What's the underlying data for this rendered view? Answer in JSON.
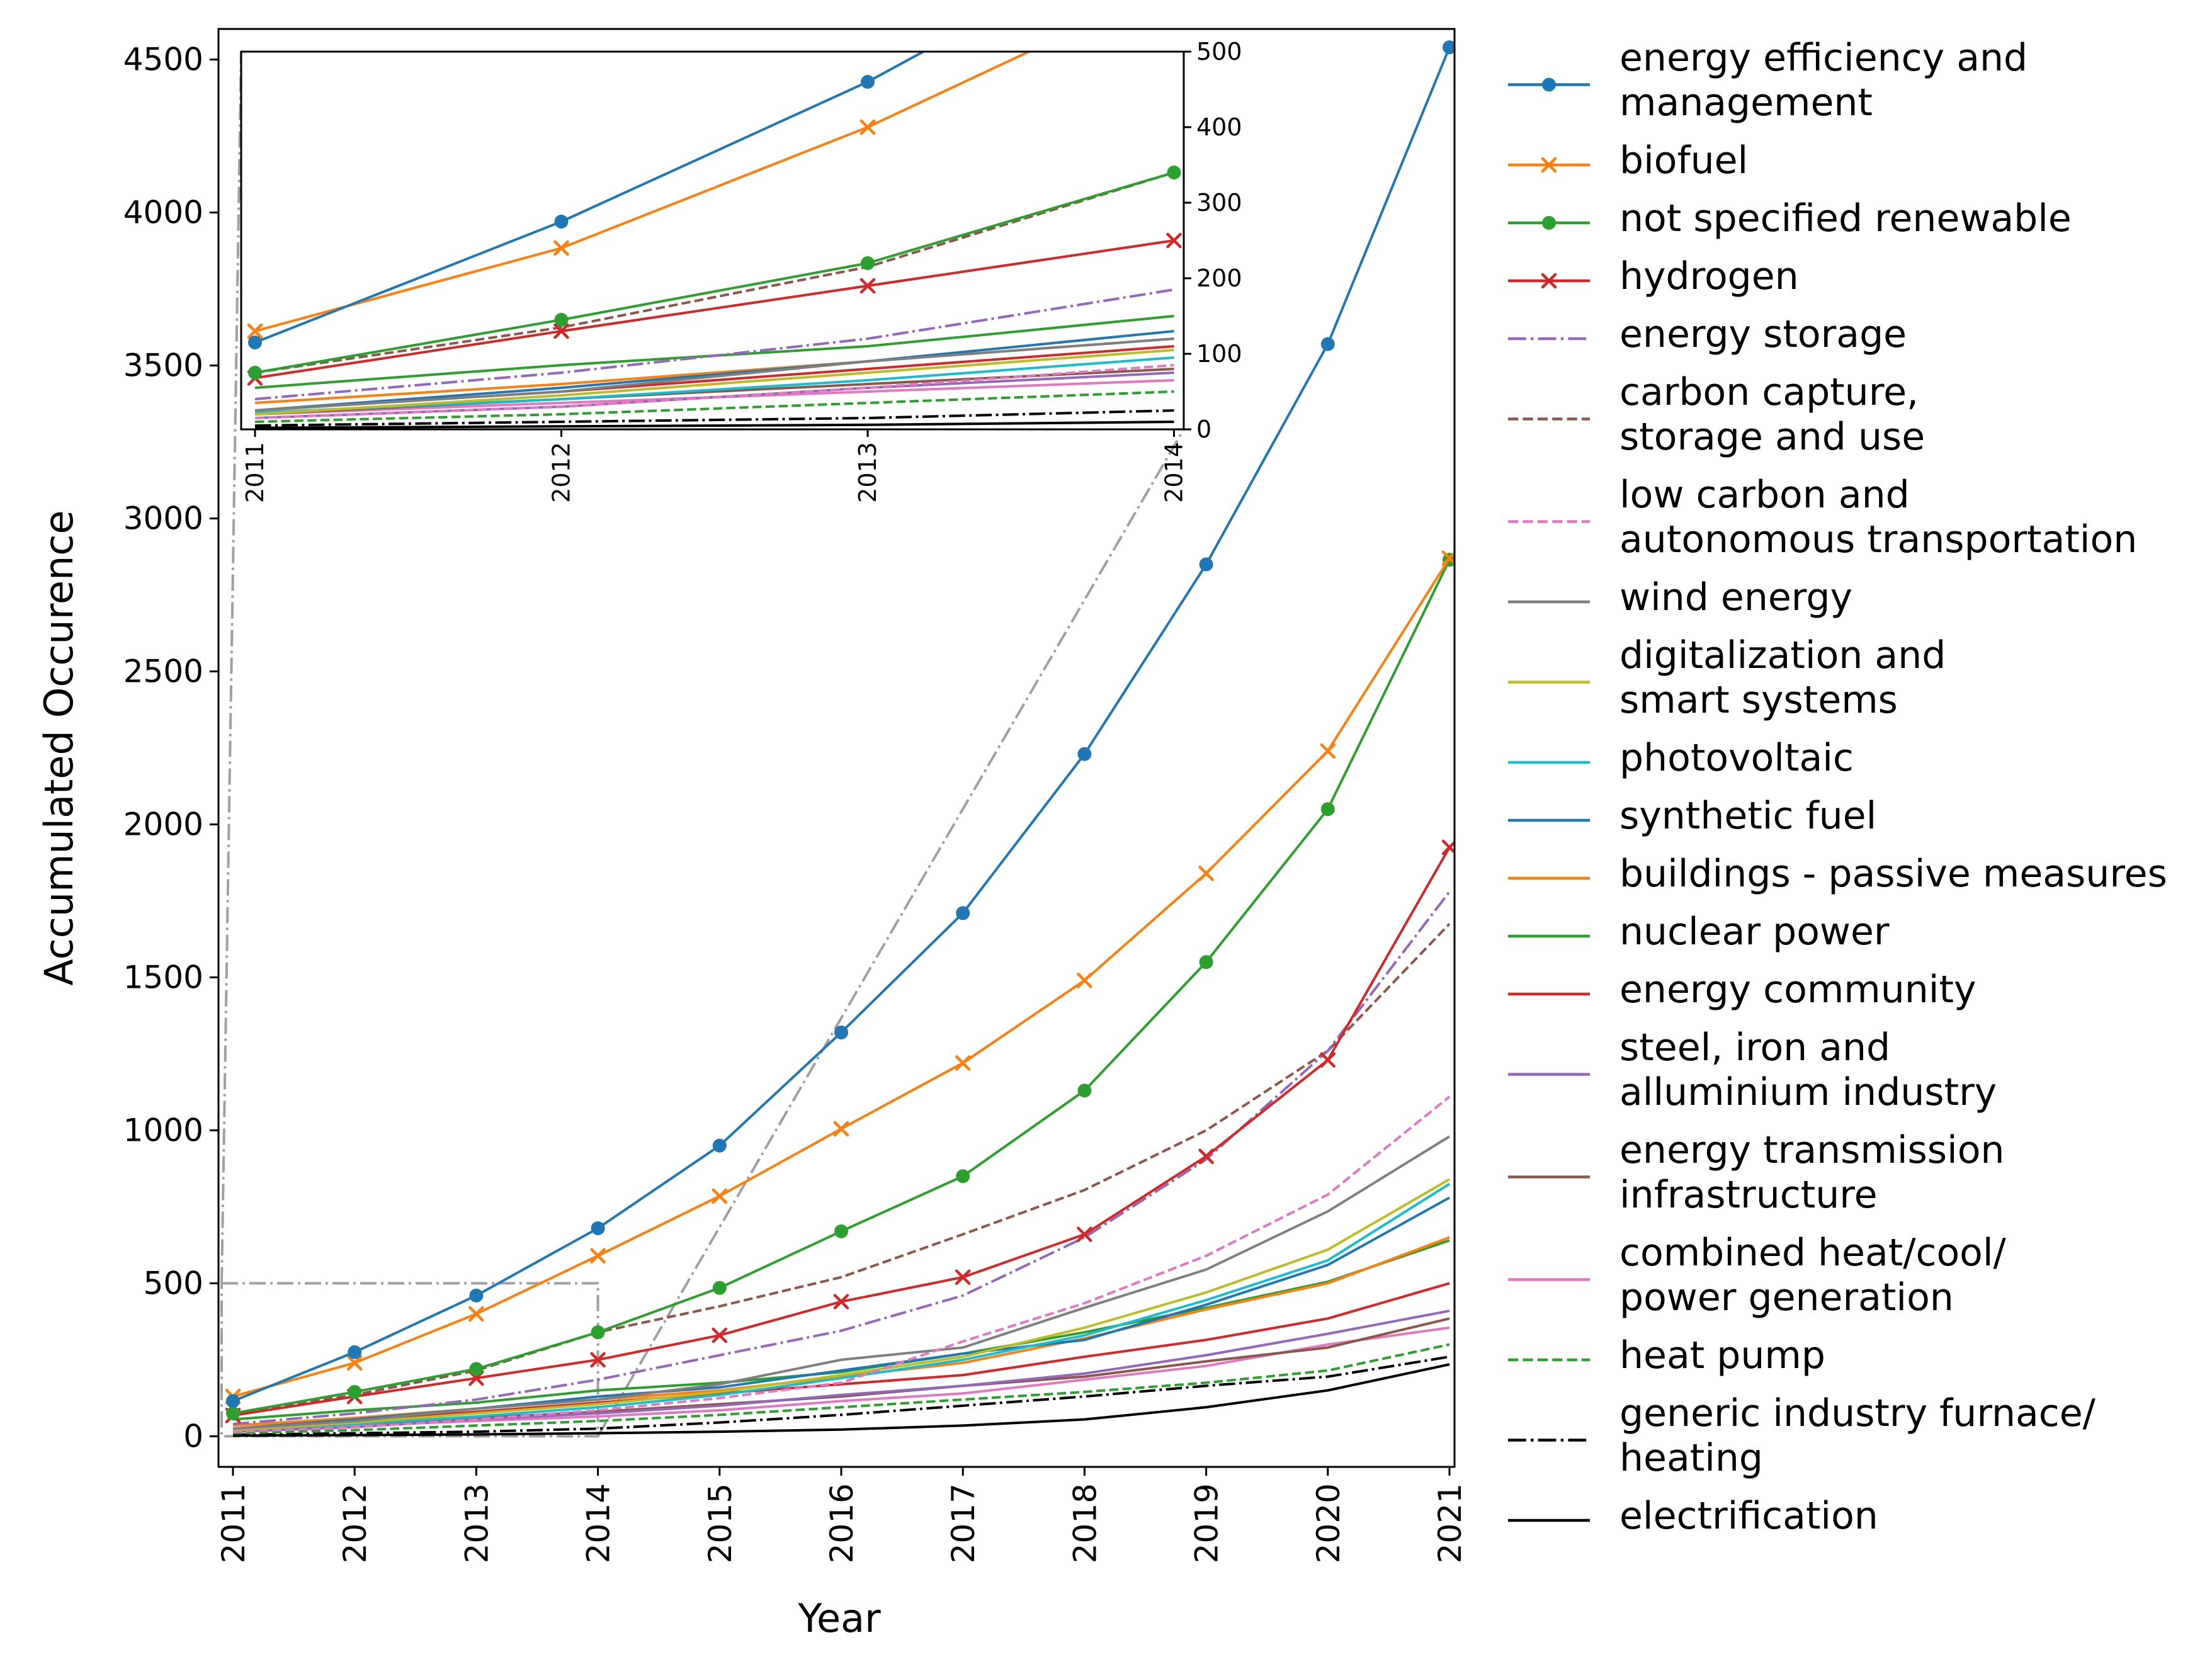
{
  "chart_data": {
    "type": "line",
    "xlabel": "Year",
    "ylabel": "Accumulated Occurence",
    "x": [
      "2011",
      "2012",
      "2013",
      "2014",
      "2015",
      "2016",
      "2017",
      "2018",
      "2019",
      "2020",
      "2021"
    ],
    "ylim": [
      -100,
      4600
    ],
    "yticks": [
      0,
      500,
      1000,
      1500,
      2000,
      2500,
      3000,
      3500,
      4000,
      4500
    ],
    "legend_position": "outside-right",
    "inset": {
      "xlim": [
        "2011",
        "2014"
      ],
      "ylim": [
        0,
        500
      ],
      "yticks": [
        0,
        100,
        200,
        300,
        400,
        500
      ],
      "yaxis_side": "right",
      "xtick_rotation": "vertical"
    },
    "series": [
      {
        "name": "energy efficiency and management",
        "legend_lines": [
          "energy efficiency and",
          "management"
        ],
        "color": "#1f77b4",
        "dash": "solid",
        "marker": "circle",
        "values": [
          115,
          275,
          460,
          680,
          950,
          1320,
          1710,
          2230,
          2850,
          3570,
          4540
        ]
      },
      {
        "name": "biofuel",
        "legend_lines": [
          "biofuel"
        ],
        "color": "#ff7f0e",
        "dash": "solid",
        "marker": "x",
        "values": [
          130,
          240,
          400,
          590,
          785,
          1005,
          1220,
          1490,
          1840,
          2240,
          2870
        ]
      },
      {
        "name": "not specified renewable",
        "legend_lines": [
          "not specified renewable"
        ],
        "color": "#2ca02c",
        "dash": "solid",
        "marker": "circle",
        "values": [
          75,
          145,
          220,
          340,
          485,
          670,
          850,
          1130,
          1550,
          2050,
          2865
        ]
      },
      {
        "name": "hydrogen",
        "legend_lines": [
          "hydrogen"
        ],
        "color": "#d62728",
        "dash": "solid",
        "marker": "x",
        "values": [
          68,
          130,
          190,
          250,
          330,
          440,
          520,
          660,
          915,
          1230,
          1925
        ]
      },
      {
        "name": "energy storage",
        "legend_lines": [
          "energy storage"
        ],
        "color": "#9467bd",
        "dash": "dashdot",
        "marker": "none",
        "values": [
          40,
          75,
          120,
          185,
          265,
          345,
          460,
          650,
          905,
          1260,
          1780
        ]
      },
      {
        "name": "carbon capture, storage and use",
        "legend_lines": [
          "carbon capture,",
          "storage and use"
        ],
        "color": "#8c564b",
        "dash": "dashed",
        "marker": "none",
        "values": [
          75,
          135,
          215,
          340,
          425,
          520,
          660,
          805,
          1000,
          1260,
          1675
        ]
      },
      {
        "name": "low carbon and autonomous transportation",
        "legend_lines": [
          "low carbon and",
          "autonomous transportation"
        ],
        "color": "#e377c2",
        "dash": "dashed",
        "marker": "none",
        "values": [
          15,
          30,
          55,
          85,
          125,
          175,
          310,
          435,
          590,
          790,
          1110
        ]
      },
      {
        "name": "wind energy",
        "legend_lines": [
          "wind energy"
        ],
        "color": "#7f7f7f",
        "dash": "solid",
        "marker": "none",
        "values": [
          25,
          50,
          90,
          120,
          170,
          250,
          290,
          420,
          545,
          735,
          980
        ]
      },
      {
        "name": "digitalization and smart systems",
        "legend_lines": [
          "digitalization and",
          "smart systems"
        ],
        "color": "#bcbd22",
        "dash": "solid",
        "marker": "none",
        "values": [
          20,
          45,
          75,
          105,
          145,
          200,
          260,
          355,
          470,
          610,
          840
        ]
      },
      {
        "name": "photovoltaic",
        "legend_lines": [
          "photovoltaic"
        ],
        "color": "#17becf",
        "dash": "solid",
        "marker": "none",
        "values": [
          22,
          40,
          65,
          95,
          135,
          190,
          250,
          330,
          445,
          575,
          825
        ]
      },
      {
        "name": "synthetic fuel",
        "legend_lines": [
          "synthetic fuel"
        ],
        "color": "#1f77b4",
        "dash": "solid",
        "marker": "none",
        "values": [
          25,
          55,
          90,
          130,
          160,
          215,
          270,
          315,
          430,
          560,
          780
        ]
      },
      {
        "name": "buildings - passive measures",
        "legend_lines": [
          "buildings - passive measures"
        ],
        "color": "#ff7f0e",
        "dash": "solid",
        "marker": "none",
        "values": [
          35,
          60,
          90,
          120,
          150,
          195,
          240,
          320,
          415,
          500,
          650
        ]
      },
      {
        "name": "nuclear power",
        "legend_lines": [
          "nuclear power"
        ],
        "color": "#2ca02c",
        "dash": "solid",
        "marker": "none",
        "values": [
          55,
          85,
          110,
          150,
          175,
          210,
          270,
          340,
          420,
          505,
          640
        ]
      },
      {
        "name": "energy community",
        "legend_lines": [
          "energy community"
        ],
        "color": "#d62728",
        "dash": "solid",
        "marker": "none",
        "values": [
          25,
          50,
          80,
          110,
          140,
          170,
          200,
          260,
          315,
          385,
          500
        ]
      },
      {
        "name": "steel, iron and alluminium industry",
        "legend_lines": [
          "steel, iron and",
          "alluminium industry"
        ],
        "color": "#9467bd",
        "dash": "solid",
        "marker": "none",
        "values": [
          15,
          30,
          55,
          75,
          100,
          135,
          165,
          205,
          265,
          335,
          410
        ]
      },
      {
        "name": "energy transmission infrastructure",
        "legend_lines": [
          "energy transmission",
          "infrastructure"
        ],
        "color": "#8c564b",
        "dash": "solid",
        "marker": "none",
        "values": [
          20,
          40,
          60,
          80,
          105,
          130,
          165,
          195,
          245,
          290,
          385
        ]
      },
      {
        "name": "combined heat/cool/ power generation",
        "legend_lines": [
          "combined heat/cool/",
          "power generation"
        ],
        "color": "#e377c2",
        "dash": "solid",
        "marker": "none",
        "values": [
          20,
          35,
          50,
          65,
          85,
          115,
          140,
          185,
          230,
          300,
          355
        ]
      },
      {
        "name": "heat pump",
        "legend_lines": [
          "heat pump"
        ],
        "color": "#2ca02c",
        "dash": "dashed",
        "marker": "none",
        "values": [
          10,
          20,
          35,
          50,
          70,
          95,
          120,
          145,
          175,
          215,
          300
        ]
      },
      {
        "name": "generic industry furnace/ heating",
        "legend_lines": [
          "generic industry furnace/",
          "heating"
        ],
        "color": "#000000",
        "dash": "dashdot",
        "marker": "none",
        "values": [
          5,
          10,
          15,
          25,
          45,
          70,
          100,
          130,
          165,
          195,
          260
        ]
      },
      {
        "name": "electrification",
        "legend_lines": [
          "electrification"
        ],
        "color": "#000000",
        "dash": "solid",
        "marker": "none",
        "values": [
          2,
          4,
          6,
          10,
          15,
          22,
          35,
          55,
          95,
          150,
          235
        ]
      }
    ]
  }
}
